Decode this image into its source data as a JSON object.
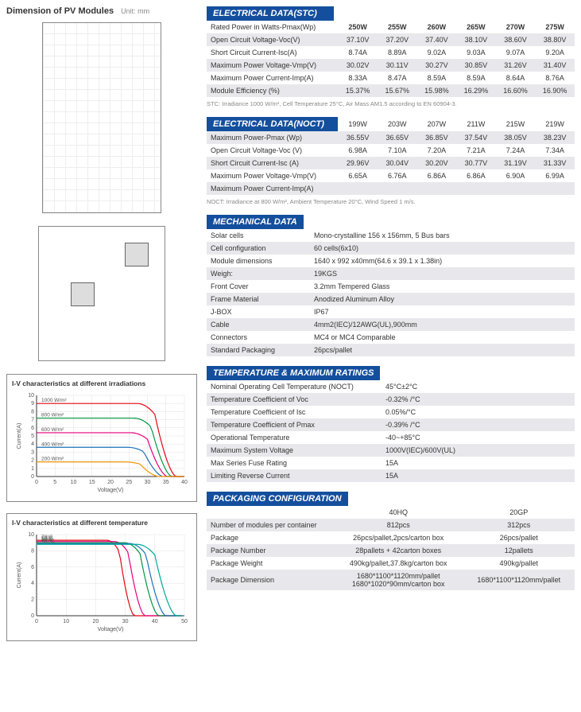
{
  "dimension": {
    "title": "Dimension of PV Modules",
    "unit": "Unit: mm"
  },
  "stc": {
    "header": "ELECTRICAL DATA(STC)",
    "cols": [
      "250W",
      "255W",
      "260W",
      "265W",
      "270W",
      "275W"
    ],
    "rows": [
      {
        "label": "Rated Power in Watts-Pmax(Wp)",
        "vals": [
          "250W",
          "255W",
          "260W",
          "265W",
          "270W",
          "275W"
        ]
      },
      {
        "label": "Open Circuit Voltage-Voc(V)",
        "vals": [
          "37.10V",
          "37.20V",
          "37.40V",
          "38.10V",
          "38.60V",
          "38.80V"
        ]
      },
      {
        "label": "Short Circuit Current-Isc(A)",
        "vals": [
          "8.74A",
          "8.89A",
          "9.02A",
          "9.03A",
          "9.07A",
          "9.20A"
        ]
      },
      {
        "label": "Maximum Power Voltage-Vmp(V)",
        "vals": [
          "30.02V",
          "30.11V",
          "30.27V",
          "30.85V",
          "31.26V",
          "31.40V"
        ]
      },
      {
        "label": "Maximum Power Current-Imp(A)",
        "vals": [
          "8.33A",
          "8.47A",
          "8.59A",
          "8.59A",
          "8.64A",
          "8.76A"
        ]
      },
      {
        "label": "Module Efficiency (%)",
        "vals": [
          "15.37%",
          "15.67%",
          "15.98%",
          "16.29%",
          "16.60%",
          "16.90%"
        ]
      }
    ],
    "footnote": "STC: Irradiance 1000 W/m², Cell Temperature 25°C, Air Mass AM1.5 according to EN 60904-3."
  },
  "noct": {
    "header": "ELECTRICAL DATA(NOCT)",
    "cols": [
      "199W",
      "203W",
      "207W",
      "211W",
      "215W",
      "219W"
    ],
    "rows": [
      {
        "label": "Maximum Power-Pmax (Wp)",
        "vals": [
          "36.55V",
          "36.65V",
          "36.85V",
          "37.54V",
          "38.05V",
          "38.23V"
        ]
      },
      {
        "label": "Open Circuit Voltage-Voc (V)",
        "vals": [
          "6.98A",
          "7.10A",
          "7.20A",
          "7.21A",
          "7.24A",
          "7.34A"
        ]
      },
      {
        "label": "Short Circuit Current-Isc (A)",
        "vals": [
          "29.96V",
          "30.04V",
          "30.20V",
          "30.77V",
          "31.19V",
          "31.33V"
        ]
      },
      {
        "label": "Maximum Power Voltage-Vmp(V)",
        "vals": [
          "6.65A",
          "6.76A",
          "6.86A",
          "6.86A",
          "6.90A",
          "6.99A"
        ]
      },
      {
        "label": "Maximum Power Current-Imp(A)",
        "vals": [
          "",
          "",
          "",
          "",
          "",
          ""
        ]
      }
    ],
    "footnote": "NOCT: Irradiance at 800 W/m², Ambient Temperature 20°C, Wind Speed 1 m/s."
  },
  "mechanical": {
    "header": "MECHANICAL DATA",
    "rows": [
      [
        "Solar cells",
        "Mono-crystalline 156 x 156mm, 5 Bus bars"
      ],
      [
        "Cell configuration",
        "60 cells(6x10)"
      ],
      [
        "Module dimensions",
        "1640 x 992 x40mm(64.6 x 39.1 x 1.38in)"
      ],
      [
        "Weigh:",
        "19KGS"
      ],
      [
        "Front Cover",
        "3.2mm Tempered Glass"
      ],
      [
        "Frame Material",
        "Anodized Aluminum Alloy"
      ],
      [
        "J-BOX",
        "IP67"
      ],
      [
        "Cable",
        "4mm2(IEC)/12AWG(UL),900mm"
      ],
      [
        "Connectors",
        "MC4 or MC4 Comparable"
      ],
      [
        "Standard Packaging",
        "26pcs/pallet"
      ]
    ]
  },
  "temp": {
    "header": "TEMPERATURE & MAXIMUM RATINGS",
    "rows": [
      [
        "Nominal Operating Cell Temperature  (NOCT)",
        "45°C±2°C"
      ],
      [
        "Temperature Coefficient of Voc",
        "-0.32% /°C"
      ],
      [
        "Temperature Coefficient of Isc",
        "0.05%/°C"
      ],
      [
        "Temperature Coefficient of Pmax",
        "-0.39% /°C"
      ],
      [
        "Operational Temperature",
        "-40~+85°C"
      ],
      [
        "Maximum System Voltage",
        "1000V(IEC)/600V(UL)"
      ],
      [
        "Max Series Fuse Rating",
        "15A"
      ],
      [
        "Limiting Reverse Current",
        "15A"
      ]
    ]
  },
  "packaging": {
    "header": "PACKAGING CONFIGURATION",
    "cols": [
      "",
      "40HQ",
      "20GP"
    ],
    "rows": [
      [
        "Number of modules per container",
        "812pcs",
        "312pcs"
      ],
      [
        "Package",
        "26pcs/pallet,2pcs/carton box",
        "26pcs/pallet"
      ],
      [
        "Package Number",
        "28pallets + 42carton boxes",
        "12pallets"
      ],
      [
        "Package Weight",
        "490kg/pallet,37.8kg/carton box",
        "490kg/pallet"
      ],
      [
        "Package Dimension",
        "1680*1100*1120mm/pallet\n1680*1020*90mm/carton box",
        "1680*1100*1120mm/pallet"
      ]
    ]
  },
  "chart1": {
    "title": "I-V characteristics at different irradiations",
    "xlabel": "Voltage(V)",
    "ylabel": "Current(A)",
    "xlim": [
      0,
      40
    ],
    "ylim": [
      0,
      10
    ],
    "xticks": [
      0,
      5,
      10,
      15,
      20,
      25,
      30,
      35,
      40
    ],
    "yticks": [
      0,
      1,
      2,
      3,
      4,
      5,
      6,
      7,
      8,
      9,
      10
    ],
    "grid_color": "#e0e0e0",
    "series": [
      {
        "label": "1000 W/m²",
        "color": "#e30613",
        "y": 9.0,
        "vdrop": 32
      },
      {
        "label": "800 W/m²",
        "color": "#009640",
        "y": 7.2,
        "vdrop": 31
      },
      {
        "label": "600 W/m²",
        "color": "#e6007e",
        "y": 5.4,
        "vdrop": 30
      },
      {
        "label": "400 W/m²",
        "color": "#1d71b8",
        "y": 3.6,
        "vdrop": 29
      },
      {
        "label": "200 W/m²",
        "color": "#f39200",
        "y": 1.8,
        "vdrop": 28
      }
    ]
  },
  "chart2": {
    "title": "I-V characteristics at different temperature",
    "xlabel": "Voltage(V)",
    "ylabel": "Current(A)",
    "xlim": [
      0,
      50
    ],
    "ylim": [
      0,
      10
    ],
    "xticks": [
      0,
      10,
      20,
      30,
      40,
      50
    ],
    "yticks": [
      0,
      2,
      4,
      6,
      8,
      10
    ],
    "grid_color": "#e0e0e0",
    "series": [
      {
        "label": "70°C",
        "color": "#e30613",
        "y": 9.3,
        "vdrop": 28
      },
      {
        "label": "50°C",
        "color": "#e6007e",
        "y": 9.15,
        "vdrop": 31
      },
      {
        "label": "25°C",
        "color": "#009640",
        "y": 9.0,
        "vdrop": 35
      },
      {
        "label": "10°C",
        "color": "#1d71b8",
        "y": 8.9,
        "vdrop": 37
      },
      {
        "label": "-10°C",
        "color": "#00a99d",
        "y": 8.8,
        "vdrop": 40
      }
    ]
  }
}
